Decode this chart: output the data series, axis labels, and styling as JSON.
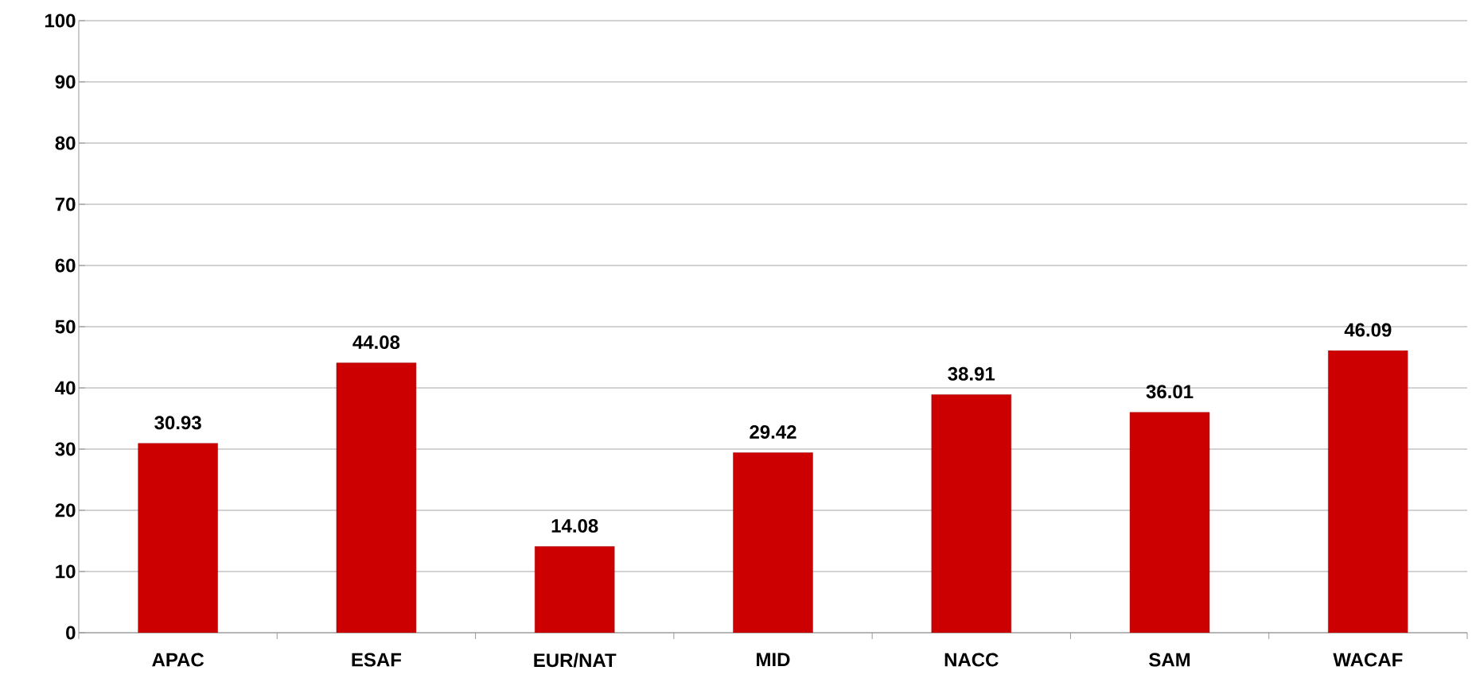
{
  "chart_data": {
    "type": "bar",
    "categories": [
      "APAC",
      "ESAF",
      "EUR/NAT",
      "MID",
      "NACC",
      "SAM",
      "WACAF"
    ],
    "values": [
      30.93,
      44.08,
      14.08,
      29.42,
      38.91,
      36.01,
      46.09
    ],
    "color": "#cc0000",
    "data_labels": true,
    "ylim": [
      0,
      100
    ],
    "yticks": [
      0,
      10,
      20,
      30,
      40,
      50,
      60,
      70,
      80,
      90,
      100
    ],
    "grid": "y"
  }
}
